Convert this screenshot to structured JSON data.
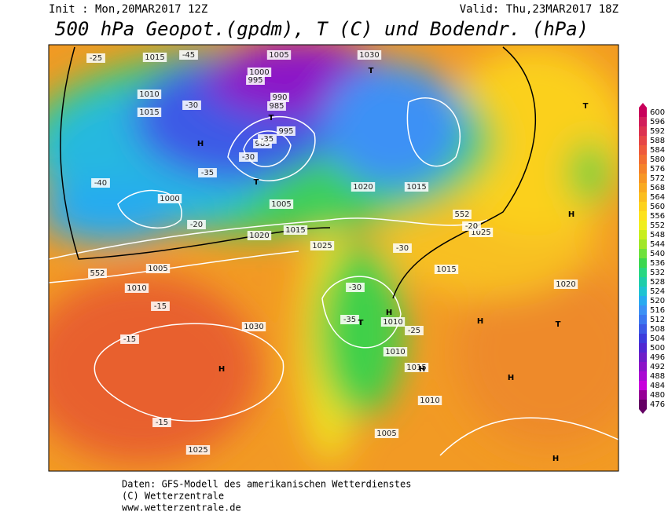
{
  "header": {
    "init": "Init : Mon,20MAR2017 12Z",
    "valid": "Valid: Thu,23MAR2017 18Z",
    "title": "500 hPa Geopot.(gpdm), T (C) und Bodendr. (hPa)"
  },
  "colorbar": {
    "values": [
      "600",
      "596",
      "592",
      "588",
      "584",
      "580",
      "576",
      "572",
      "568",
      "564",
      "560",
      "556",
      "552",
      "548",
      "544",
      "540",
      "536",
      "532",
      "528",
      "524",
      "520",
      "516",
      "512",
      "508",
      "504",
      "500",
      "496",
      "492",
      "488",
      "484",
      "480",
      "476"
    ],
    "colors": [
      "#c8005a",
      "#d21e5a",
      "#dc3250",
      "#e64646",
      "#ee5a3c",
      "#f26e32",
      "#f5822a",
      "#f79624",
      "#f9aa20",
      "#fbbe1e",
      "#fdd21c",
      "#fde21c",
      "#f0ee1e",
      "#c8ee1e",
      "#a0e628",
      "#6ee13c",
      "#3cd750",
      "#28d782",
      "#1ecdaa",
      "#1ec3d2",
      "#28aaf0",
      "#3c91f5",
      "#3c78f0",
      "#3c5ae6",
      "#3c3cdc",
      "#5028d2",
      "#6e1ec8",
      "#8c14c8",
      "#aa0ad2",
      "#c800dc",
      "#960096",
      "#640064"
    ]
  },
  "map_labels": [
    "1015",
    "1010",
    "1015",
    "1005",
    "1000",
    "995",
    "985",
    "990",
    "985",
    "995",
    "1000",
    "1005",
    "1020",
    "1025",
    "1030",
    "1025",
    "1015",
    "1020",
    "1015",
    "1010",
    "1005",
    "1010",
    "1015",
    "1030",
    "1020",
    "1010",
    "1010",
    "1005",
    "1025",
    "1015",
    "-25",
    "-30",
    "-35",
    "-40",
    "-45",
    "-35",
    "-30",
    "-20",
    "-15",
    "-15",
    "-15",
    "-25",
    "-30",
    "-35",
    "-20",
    "-30",
    "552",
    "552",
    "H",
    "H",
    "H",
    "T",
    "T",
    "T",
    "T",
    "H",
    "H",
    "H",
    "T",
    "H",
    "T",
    "H"
  ],
  "footer": {
    "lines": [
      "Daten: GFS-Modell des amerikanischen Wetterdienstes",
      "(C) Wetterzentrale",
      "www.wetterzentrale.de"
    ]
  }
}
